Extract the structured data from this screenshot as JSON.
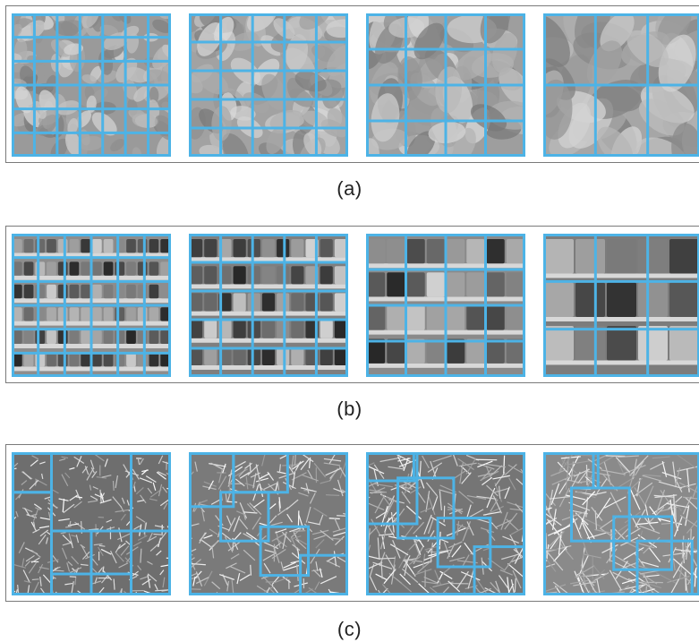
{
  "figure": {
    "rows": [
      {
        "id": "a",
        "caption": "(a)",
        "texture": "pasta",
        "tiles": [
          {
            "grid": [
              7,
              6
            ],
            "tone": "#9a9a9a"
          },
          {
            "grid": [
              5,
              5
            ],
            "tone": "#a2a2a2"
          },
          {
            "grid": [
              4,
              4
            ],
            "tone": "#9e9e9e"
          },
          {
            "grid": [
              3,
              2
            ],
            "tone": "#a6a6a6"
          }
        ]
      },
      {
        "id": "b",
        "caption": "(b)",
        "texture": "shelves",
        "tiles": [
          {
            "grid": [
              6,
              6
            ],
            "tone": "#8d8d8d"
          },
          {
            "grid": [
              5,
              5
            ],
            "tone": "#7f7f7f"
          },
          {
            "grid": [
              4,
              4
            ],
            "tone": "#8a8a8a"
          },
          {
            "grid": [
              3,
              3
            ],
            "tone": "#7c7c7c"
          }
        ]
      },
      {
        "id": "c",
        "caption": "(c)",
        "texture": "foliage",
        "tiles": [
          {
            "tone": "#6e6e6e"
          },
          {
            "tone": "#7a7a7a"
          },
          {
            "tone": "#757575"
          },
          {
            "tone": "#8a8a8a"
          }
        ]
      }
    ],
    "grid_color": "#4db3e6"
  }
}
